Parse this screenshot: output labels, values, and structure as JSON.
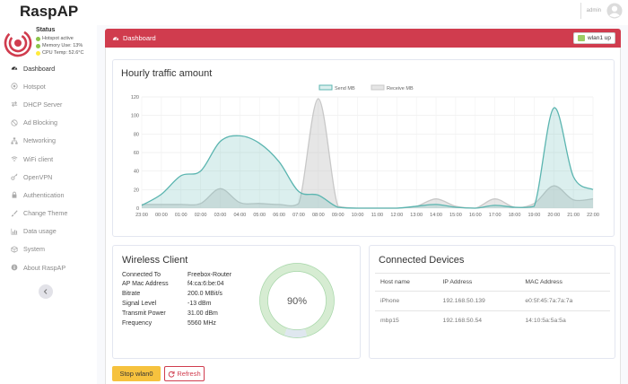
{
  "app": {
    "brand": "RaspAP"
  },
  "user": {
    "name": "admin"
  },
  "status": {
    "title": "Status",
    "lines": [
      {
        "text": "Hotspot active",
        "color": "#8bc34a"
      },
      {
        "text": "Memory Use: 13%",
        "color": "#8bc34a"
      },
      {
        "text": "CPU Temp: 52.6°C",
        "color": "#ffeb3b"
      }
    ]
  },
  "sidebar": {
    "items": [
      {
        "label": "Dashboard",
        "icon": "tachometer-icon",
        "active": true
      },
      {
        "label": "Hotspot",
        "icon": "dot-circle-icon"
      },
      {
        "label": "DHCP Server",
        "icon": "exchange-icon"
      },
      {
        "label": "Ad Blocking",
        "icon": "ban-icon"
      },
      {
        "label": "Networking",
        "icon": "network-icon"
      },
      {
        "label": "WiFi client",
        "icon": "wifi-icon"
      },
      {
        "label": "OpenVPN",
        "icon": "key-icon"
      },
      {
        "label": "Authentication",
        "icon": "lock-icon"
      },
      {
        "label": "Change Theme",
        "icon": "paint-brush-icon"
      },
      {
        "label": "Data usage",
        "icon": "chart-bar-icon"
      },
      {
        "label": "System",
        "icon": "cube-icon"
      },
      {
        "label": "About RaspAP",
        "icon": "info-circle-icon"
      }
    ],
    "collapse_icon": "chevron-left-icon"
  },
  "header": {
    "title": "Dashboard",
    "interface_button": "wlan1 up"
  },
  "traffic": {
    "title": "Hourly traffic amount"
  },
  "chart_data": {
    "type": "area",
    "title": "Hourly traffic amount",
    "x": [
      "23:00",
      "00:00",
      "01:00",
      "02:00",
      "03:00",
      "04:00",
      "05:00",
      "06:00",
      "07:00",
      "08:00",
      "09:00",
      "10:00",
      "11:00",
      "12:00",
      "13:00",
      "14:00",
      "15:00",
      "16:00",
      "17:00",
      "18:00",
      "19:00",
      "20:00",
      "21:00",
      "22:00"
    ],
    "ylim": [
      0,
      120
    ],
    "yticks": [
      0,
      20,
      40,
      60,
      80,
      100,
      120
    ],
    "legend_position": "top-center",
    "grid": true,
    "series": [
      {
        "name": "Send MB",
        "color": "#5bb5b0",
        "values": [
          3,
          15,
          35,
          40,
          72,
          78,
          70,
          50,
          18,
          14,
          1,
          0,
          0,
          0,
          2,
          4,
          1,
          0,
          3,
          1,
          2,
          108,
          34,
          20
        ]
      },
      {
        "name": "Receive MB",
        "color": "#c8c8c8",
        "values": [
          4,
          4,
          4,
          5,
          21,
          6,
          5,
          4,
          5,
          118,
          2,
          0,
          0,
          0,
          2,
          10,
          2,
          0,
          10,
          1,
          5,
          24,
          9,
          10
        ]
      }
    ]
  },
  "wireless": {
    "title": "Wireless Client",
    "rows": [
      {
        "k": "Connected To",
        "v": "Freebox-Router"
      },
      {
        "k": "AP Mac Address",
        "v": "f4:ca:6:be:04"
      },
      {
        "k": "Bitrate",
        "v": "200.0 MBit/s"
      },
      {
        "k": "Signal Level",
        "v": "-13 dBm"
      },
      {
        "k": "Transmit Power",
        "v": "31.00 dBm"
      },
      {
        "k": "Frequency",
        "v": "5560 MHz"
      }
    ],
    "signal_percent": 90,
    "signal_label": "90%"
  },
  "devices": {
    "title": "Connected Devices",
    "columns": [
      "Host name",
      "IP Address",
      "MAC Address"
    ],
    "rows": [
      [
        "iPhone",
        "192.168.50.139",
        "e0:5f:45:7a:7a:7a"
      ],
      [
        "mbp15",
        "192.168.50.54",
        "14:10:5a:5a:5a"
      ]
    ]
  },
  "actions": {
    "stop_label": "Stop wlan0",
    "refresh_label": "Refresh"
  }
}
